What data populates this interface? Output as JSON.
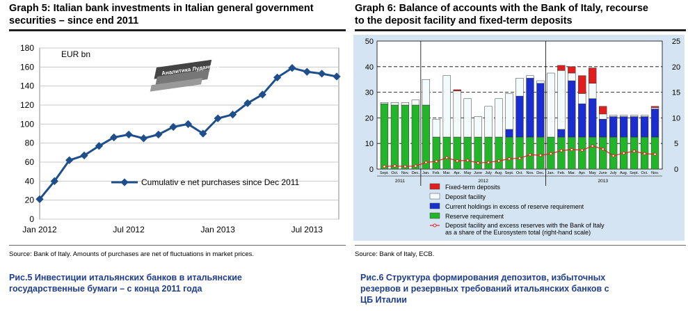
{
  "left": {
    "title_line1": "Graph 5: Italian bank investments in Italian general government",
    "title_line2": "securities – since end 2011",
    "source": "Source: Bank of Italy. Amounts of purchases are net of fluctuations in market prices.",
    "caption_line1": "Рис.5 Инвестиции итальянских банков в итальянские",
    "caption_line2": "государственные бумаги – с конца 2011 года",
    "watermark": "Аналитика Лудановъ"
  },
  "right": {
    "title_line1": "Graph 6: Balance of accounts with the Bank of Italy, recourse",
    "title_line2": "to the deposit facility and fixed-term deposits",
    "source": "Source: Bank of Italy, ECB.",
    "caption_line1": "Рис.6 Структура формирования депозитов, избыточных",
    "caption_line2": "резервов и резервных требований итальянских банков с",
    "caption_line3": "ЦБ Италии"
  },
  "colors": {
    "line": "#1f4e8c",
    "fixed": "#e01e1e",
    "deposit": "#f4fbfc",
    "excess": "#1a2ed0",
    "reserve": "#22b52a",
    "ratio": "#e01e1e",
    "plot_bg": "#d5e4f2"
  },
  "chart_data": [
    {
      "type": "line",
      "title": "Graph 5: Italian bank investments in Italian general government securities – since end 2011",
      "ylabel": "EUR bn",
      "ylim": [
        0,
        180
      ],
      "yticks": [
        0,
        20,
        40,
        60,
        80,
        100,
        120,
        140,
        160,
        180
      ],
      "xtick_labels": [
        {
          "label": "Jan 2012",
          "index": 0
        },
        {
          "label": "Jul 2012",
          "index": 6
        },
        {
          "label": "Jan 2013",
          "index": 12
        },
        {
          "label": "Jul 2013",
          "index": 18
        }
      ],
      "x_count": 21,
      "series": [
        {
          "name": "Cumulative net purchases since Dec 2011",
          "legend_text": "Cumulativ e net purchases since Dec 2011",
          "values": [
            21,
            40,
            62,
            67,
            77,
            86,
            89,
            85,
            89,
            97,
            100,
            90,
            106,
            110,
            122,
            131,
            149,
            159,
            155,
            153,
            150
          ]
        }
      ]
    },
    {
      "type": "bar",
      "title": "Graph 6: Balance of accounts with the Bank of Italy, recourse to the deposit facility and fixed-term deposits",
      "ylim": [
        0,
        50
      ],
      "yticks": [
        0,
        10,
        20,
        30,
        40,
        50
      ],
      "ylim_right": [
        0,
        25
      ],
      "yticks_right": [
        0,
        5,
        10,
        15,
        20,
        25
      ],
      "categories": [
        "Sept.",
        "Oct.",
        "Nov.",
        "Dec.",
        "Jan.",
        "Feb.",
        "Mar.",
        "Apr.",
        "May",
        "June",
        "July",
        "Aug.",
        "Sept.",
        "Oct.",
        "Nov.",
        "Dec.",
        "Jan.",
        "Feb.",
        "Mar.",
        "Apr.",
        "May",
        "June",
        "July",
        "Aug.",
        "Sept.",
        "Oct.",
        "Nov."
      ],
      "year_labels": [
        {
          "label": "2011",
          "from": 0,
          "to": 3
        },
        {
          "label": "2012",
          "from": 4,
          "to": 15
        },
        {
          "label": "2013",
          "from": 16,
          "to": 26
        }
      ],
      "series": [
        {
          "name": "Reserve requirement",
          "values": [
            25.5,
            25,
            25,
            25,
            25,
            12.5,
            12.5,
            12.5,
            12.5,
            12.5,
            12.5,
            12.5,
            12.5,
            12.5,
            12.5,
            12.5,
            12.5,
            12.5,
            12.5,
            12.5,
            12.5,
            12.5,
            12.5,
            12.5,
            12.5,
            12.5,
            12.5
          ]
        },
        {
          "name": "Current holdings in excess of reserve requirement",
          "values": [
            0,
            0,
            0,
            0,
            0,
            0,
            0,
            0,
            0,
            0,
            0,
            0,
            3,
            16,
            23,
            21,
            0,
            3,
            22,
            13,
            15,
            7,
            8,
            8,
            8,
            8,
            11
          ]
        },
        {
          "name": "Deposit facility",
          "values": [
            0.5,
            1,
            1,
            2,
            10,
            7,
            24,
            18,
            15,
            8,
            12,
            15,
            14,
            7,
            1,
            1,
            25,
            23,
            3,
            4,
            6,
            2,
            0.5,
            0.5,
            0.5,
            0.5,
            0.5
          ]
        },
        {
          "name": "Fixed-term deposits",
          "values": [
            0,
            0,
            0,
            0,
            0,
            0,
            0,
            0.5,
            0,
            0,
            0,
            0,
            0,
            0,
            0,
            0,
            0,
            2,
            2.5,
            7,
            6,
            3,
            0,
            0,
            0,
            0,
            0.5
          ]
        }
      ],
      "line_series": {
        "name": "Deposit facility and excess reserves with the Bank of Italy as a share of the Eurosystem total (right-hand scale)",
        "axis": "right",
        "values": [
          0.5,
          0.6,
          0.5,
          0.6,
          1.3,
          1.5,
          2.2,
          1.6,
          1.7,
          1.2,
          1.3,
          1.6,
          2.0,
          2.1,
          2.8,
          2.7,
          3.0,
          3.6,
          3.8,
          3.7,
          4.5,
          3.9,
          2.6,
          3.1,
          3.5,
          3.0,
          2.9
        ]
      },
      "legend": [
        "Fixed-term deposits",
        "Deposit facility",
        "Current holdings in excess of reserve requirement",
        "Reserve requirement",
        "Deposit facility and excess reserves with the Bank of Italy",
        "as a share of the Eurosystem total (right-hand scale)"
      ]
    }
  ]
}
